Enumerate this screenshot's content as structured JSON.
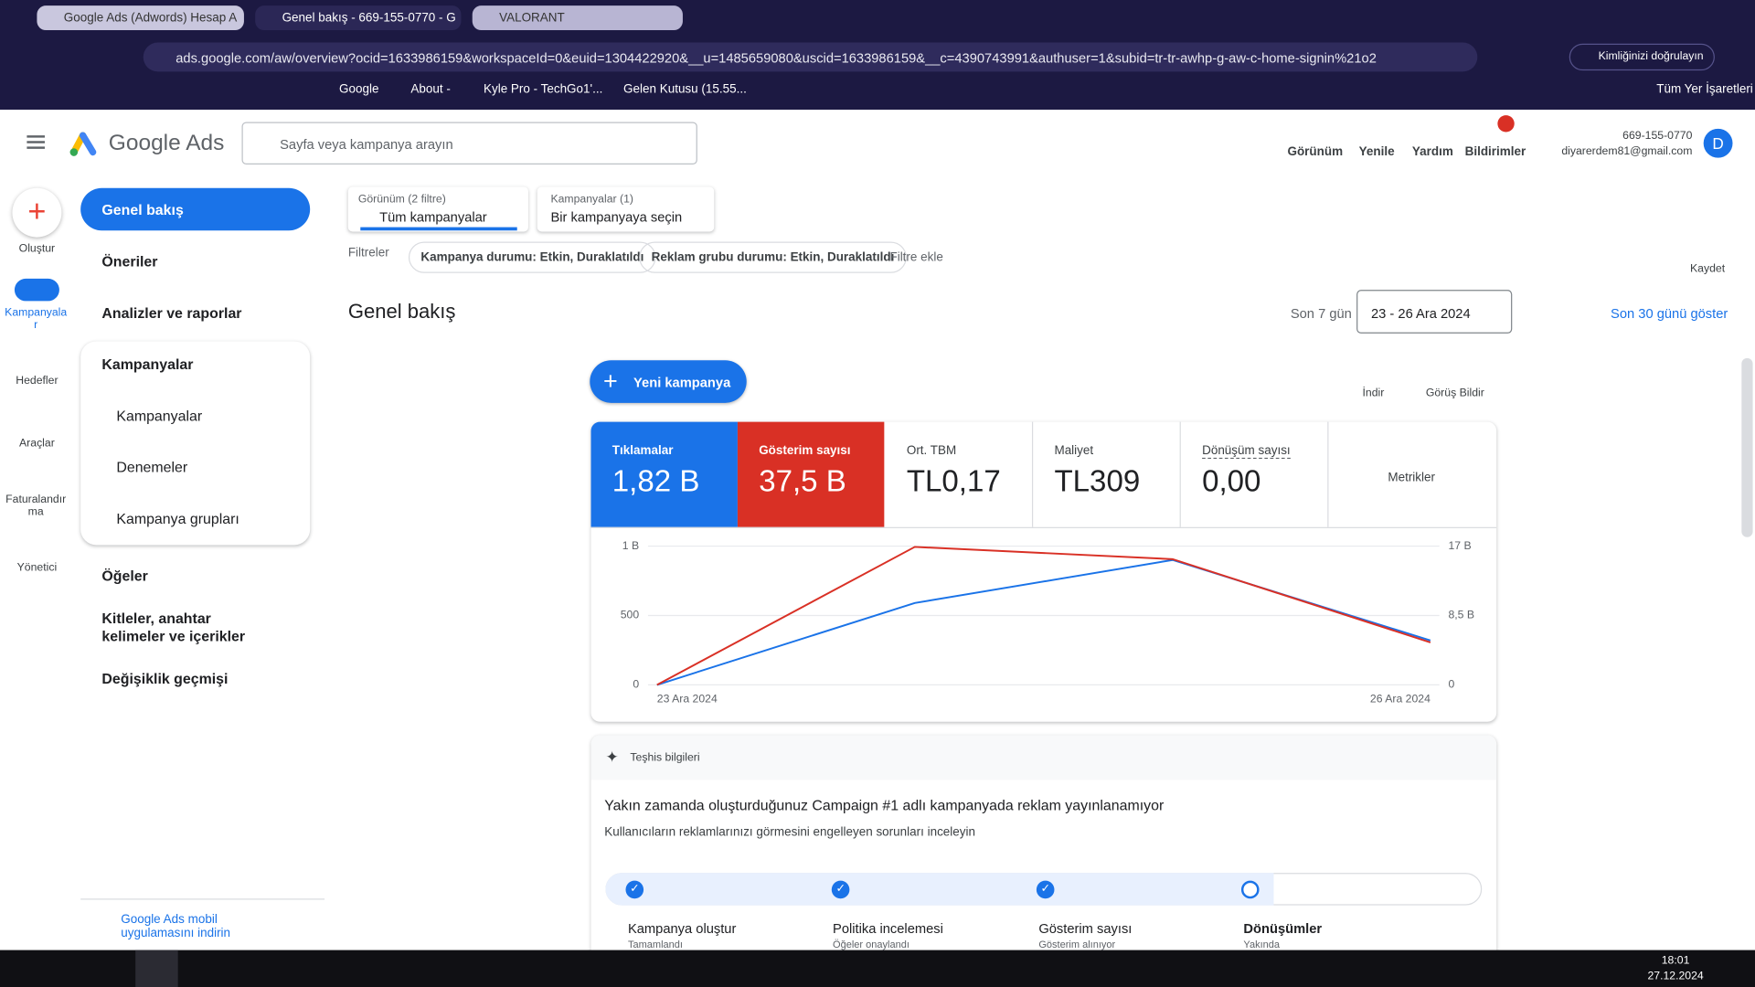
{
  "browser": {
    "tabs": [
      "Google Ads (Adwords) Hesap A",
      "Genel bakış - 669-155-0770 - G",
      "VALORANT"
    ],
    "url": "ads.google.com/aw/overview?ocid=1633986159&workspaceId=0&euid=1304422920&__u=1485659080&uscid=1633986159&__c=4390743991&authuser=1&subid=tr-tr-awhp-g-aw-c-home-signin%21o2",
    "profile": "Kimliğinizi doğrulayın",
    "bookmarks": [
      "Google",
      "About -",
      "Kyle Pro - TechGo1'...",
      "Gelen Kutusu (15.55..."
    ],
    "all_bookmarks": "Tüm Yer İşaretleri"
  },
  "header": {
    "product": "Google Ads",
    "search_placeholder": "Sayfa veya kampanya arayın",
    "actions": [
      "Görünüm",
      "Yenile",
      "Yardım",
      "Bildirimler"
    ],
    "account_id": "669-155-0770",
    "email": "diyarerdem81@gmail.com",
    "avatar": "D"
  },
  "rail": [
    "Oluştur",
    "Kampanyalar",
    "Hedefler",
    "Araçlar",
    "Faturalandırma",
    "Yönetici"
  ],
  "nav": {
    "items": [
      "Genel bakış",
      "Öneriler",
      "Analizler ve raporlar",
      "Kampanyalar",
      "Öğeler",
      "Kitleler, anahtar kelimeler ve içerikler",
      "Değişiklik geçmişi"
    ],
    "sub": [
      "Kampanyalar",
      "Denemeler",
      "Kampanya grupları"
    ],
    "app_link": "Google Ads mobil uygulamasını indirin"
  },
  "filters": {
    "view_label": "Görünüm (2 filtre)",
    "view_value": "Tüm kampanyalar",
    "campaign_label": "Kampanyalar (1)",
    "campaign_value": "Bir kampanyaya seçin",
    "label": "Filtreler",
    "chips": [
      "Kampanya durumu: Etkin, Duraklatıldı",
      "Reklam grubu durumu: Etkin, Duraklatıldı"
    ],
    "add": "Filtre ekle",
    "save": "Kaydet"
  },
  "overview": {
    "title": "Genel bakış",
    "range_label": "Son 7 gün",
    "date_range": "23 - 26 Ara 2024",
    "show_30": "Son 30 günü göster",
    "new_campaign": "Yeni kampanya",
    "download": "İndir",
    "feedback": "Görüş Bildir"
  },
  "metrics": [
    "1,82 B",
    "37,5 B"
  ],
  "metric_cards": [
    {
      "label": "Ort. TBM",
      "value": "TL0,17"
    },
    {
      "label": "Maliyet",
      "value": "TL309"
    },
    {
      "label": "Dönüşüm sayısı",
      "value": "0,00"
    }
  ],
  "metrics_button": "Metrikler",
  "chart_data": {
    "type": "line",
    "categories": [
      "23 Ara 2024",
      null,
      null,
      "26 Ara 2024"
    ],
    "series": [
      {
        "name": "Tıklamalar",
        "color": "#1a73e8",
        "values": [
          0,
          590,
          900,
          320
        ]
      },
      {
        "name": "Gösterim sayısı",
        "color": "#d93025",
        "axis": "y2",
        "values": [
          0,
          16900,
          15400,
          5200
        ]
      }
    ],
    "ylim": [
      0,
      1000
    ],
    "yticks": [
      0,
      500,
      {
        "value": 1000,
        "label": "1 B"
      }
    ],
    "y2lim": [
      0,
      17000
    ],
    "y2ticks": [
      0,
      {
        "value": 8500,
        "label": "8,5 B"
      },
      {
        "value": 17000,
        "label": "17 B"
      }
    ],
    "grid": true
  },
  "diagnostics": {
    "title": "Teşhis bilgileri",
    "headline": "Yakın zamanda oluşturduğunuz Campaign #1 adlı kampanyada reklam yayınlanamıyor",
    "subtitle": "Kullanıcıların reklamlarınızı görmesini engelleyen sorunları inceleyin",
    "steps": [
      {
        "title": "Kampanya oluştur",
        "status": "Tamamlandı"
      },
      {
        "title": "Politika incelemesi",
        "status": "Öğeler onaylandı"
      },
      {
        "title": "Gösterim sayısı",
        "status": "Gösterim alınıyor"
      },
      {
        "title": "Dönüşümler",
        "status": "Yakında"
      }
    ]
  },
  "taskbar": {
    "time": "18:01",
    "date": "27.12.2024"
  }
}
